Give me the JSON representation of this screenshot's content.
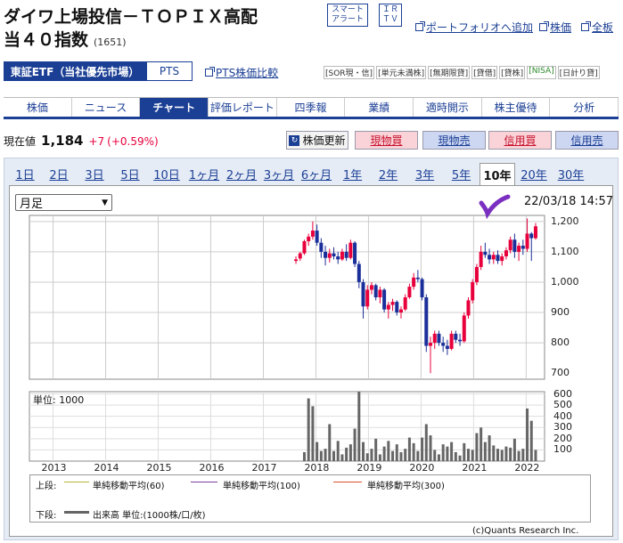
{
  "header": {
    "title_line1": "ダイワ上場投信－ＴＯＰＩＸ高配",
    "title_line2": "当４０指数",
    "code": "(1651)",
    "smart_alert": [
      "スマート",
      "アラート"
    ],
    "ir_tv": [
      "ＩＲ",
      "ＴＶ"
    ],
    "links": {
      "portfolio": "ポートフォリオへ追加",
      "stock_price": "株価",
      "full_view": "全板"
    }
  },
  "market_tabs": {
    "tse": "東証ETF（当社優先市場）",
    "pts": "PTS",
    "pts_compare": "PTS株価比較"
  },
  "badges": [
    "[SOR現・信]",
    "[単元未満株]",
    "[無期限貸]",
    "[貸借]",
    "[貸株]",
    "[NISA]",
    "[日計り貸]"
  ],
  "nav": [
    "株価",
    "ニュース",
    "チャート",
    "評価レポート",
    "四季報",
    "業績",
    "適時開示",
    "株主優待",
    "分析"
  ],
  "price": {
    "label": "現在値",
    "value": "1,184",
    "change": "+7",
    "change_pct": "(+0.59%)"
  },
  "actions": {
    "refresh": "株価更新",
    "cash_buy": "現物買",
    "cash_sell": "現物売",
    "margin_buy": "信用買",
    "margin_sell": "信用売"
  },
  "period_tabs": [
    "1日",
    "2日",
    "3日",
    "5日",
    "10日",
    "1ヶ月",
    "2ヶ月",
    "3ヶ月",
    "6ヶ月",
    "1年",
    "2年",
    "3年",
    "5年",
    "10年",
    "20年",
    "30年"
  ],
  "selected_period": "10年",
  "chart_select": "月足",
  "timestamp": "22/03/18 14:57",
  "chart_data": {
    "type": "candlestick",
    "x_labels": [
      "2013",
      "2014",
      "2015",
      "2016",
      "2017",
      "2018",
      "2019",
      "2020",
      "2021",
      "2022"
    ],
    "price_axis": {
      "ticks": [
        "1,200",
        "1,100",
        "1,000",
        "900",
        "800",
        "700"
      ],
      "range": [
        680,
        1220
      ]
    },
    "volume_axis": {
      "unit_label": "単位: 1000",
      "ticks": [
        "600",
        "500",
        "400",
        "300",
        "200",
        "100"
      ],
      "range": [
        0,
        620
      ]
    },
    "candles": [
      {
        "t": 2017.62,
        "o": 1070,
        "h": 1085,
        "l": 1060,
        "c": 1075
      },
      {
        "t": 2017.7,
        "o": 1078,
        "h": 1100,
        "l": 1070,
        "c": 1095
      },
      {
        "t": 2017.78,
        "o": 1095,
        "h": 1140,
        "l": 1090,
        "c": 1135
      },
      {
        "t": 2017.86,
        "o": 1135,
        "h": 1160,
        "l": 1120,
        "c": 1150
      },
      {
        "t": 2017.94,
        "o": 1150,
        "h": 1200,
        "l": 1140,
        "c": 1170
      },
      {
        "t": 2018.02,
        "o": 1170,
        "h": 1190,
        "l": 1120,
        "c": 1130
      },
      {
        "t": 2018.1,
        "o": 1130,
        "h": 1145,
        "l": 1080,
        "c": 1100
      },
      {
        "t": 2018.18,
        "o": 1100,
        "h": 1120,
        "l": 1055,
        "c": 1080
      },
      {
        "t": 2018.26,
        "o": 1080,
        "h": 1110,
        "l": 1065,
        "c": 1095
      },
      {
        "t": 2018.34,
        "o": 1095,
        "h": 1115,
        "l": 1075,
        "c": 1085
      },
      {
        "t": 2018.42,
        "o": 1085,
        "h": 1100,
        "l": 1060,
        "c": 1075
      },
      {
        "t": 2018.5,
        "o": 1075,
        "h": 1110,
        "l": 1070,
        "c": 1100
      },
      {
        "t": 2018.58,
        "o": 1100,
        "h": 1125,
        "l": 1070,
        "c": 1080
      },
      {
        "t": 2018.66,
        "o": 1080,
        "h": 1140,
        "l": 1075,
        "c": 1130
      },
      {
        "t": 2018.74,
        "o": 1130,
        "h": 1135,
        "l": 1050,
        "c": 1060
      },
      {
        "t": 2018.82,
        "o": 1060,
        "h": 1070,
        "l": 980,
        "c": 1000
      },
      {
        "t": 2018.9,
        "o": 1000,
        "h": 1010,
        "l": 880,
        "c": 920
      },
      {
        "t": 2018.98,
        "o": 920,
        "h": 990,
        "l": 910,
        "c": 975
      },
      {
        "t": 2019.06,
        "o": 975,
        "h": 1000,
        "l": 960,
        "c": 990
      },
      {
        "t": 2019.14,
        "o": 990,
        "h": 995,
        "l": 940,
        "c": 950
      },
      {
        "t": 2019.22,
        "o": 950,
        "h": 985,
        "l": 930,
        "c": 975
      },
      {
        "t": 2019.3,
        "o": 975,
        "h": 980,
        "l": 900,
        "c": 910
      },
      {
        "t": 2019.38,
        "o": 910,
        "h": 935,
        "l": 880,
        "c": 925
      },
      {
        "t": 2019.46,
        "o": 925,
        "h": 945,
        "l": 905,
        "c": 935
      },
      {
        "t": 2019.54,
        "o": 935,
        "h": 940,
        "l": 890,
        "c": 900
      },
      {
        "t": 2019.62,
        "o": 900,
        "h": 920,
        "l": 880,
        "c": 910
      },
      {
        "t": 2019.7,
        "o": 910,
        "h": 960,
        "l": 905,
        "c": 950
      },
      {
        "t": 2019.78,
        "o": 950,
        "h": 995,
        "l": 945,
        "c": 985
      },
      {
        "t": 2019.86,
        "o": 985,
        "h": 1030,
        "l": 975,
        "c": 1015
      },
      {
        "t": 2019.94,
        "o": 1015,
        "h": 1040,
        "l": 1000,
        "c": 1010
      },
      {
        "t": 2020.02,
        "o": 1010,
        "h": 1015,
        "l": 940,
        "c": 950
      },
      {
        "t": 2020.1,
        "o": 950,
        "h": 960,
        "l": 770,
        "c": 790
      },
      {
        "t": 2020.18,
        "o": 790,
        "h": 820,
        "l": 700,
        "c": 800
      },
      {
        "t": 2020.26,
        "o": 800,
        "h": 840,
        "l": 780,
        "c": 830
      },
      {
        "t": 2020.34,
        "o": 830,
        "h": 840,
        "l": 790,
        "c": 800
      },
      {
        "t": 2020.42,
        "o": 800,
        "h": 820,
        "l": 770,
        "c": 790
      },
      {
        "t": 2020.5,
        "o": 790,
        "h": 810,
        "l": 760,
        "c": 780
      },
      {
        "t": 2020.58,
        "o": 780,
        "h": 840,
        "l": 775,
        "c": 830
      },
      {
        "t": 2020.66,
        "o": 830,
        "h": 840,
        "l": 800,
        "c": 810
      },
      {
        "t": 2020.74,
        "o": 810,
        "h": 830,
        "l": 790,
        "c": 805
      },
      {
        "t": 2020.82,
        "o": 805,
        "h": 900,
        "l": 800,
        "c": 890
      },
      {
        "t": 2020.9,
        "o": 890,
        "h": 950,
        "l": 880,
        "c": 940
      },
      {
        "t": 2020.98,
        "o": 940,
        "h": 1010,
        "l": 930,
        "c": 1000
      },
      {
        "t": 2021.06,
        "o": 1000,
        "h": 1060,
        "l": 990,
        "c": 1050
      },
      {
        "t": 2021.14,
        "o": 1050,
        "h": 1120,
        "l": 1040,
        "c": 1100
      },
      {
        "t": 2021.22,
        "o": 1100,
        "h": 1130,
        "l": 1080,
        "c": 1090
      },
      {
        "t": 2021.3,
        "o": 1090,
        "h": 1110,
        "l": 1060,
        "c": 1075
      },
      {
        "t": 2021.38,
        "o": 1075,
        "h": 1100,
        "l": 1060,
        "c": 1090
      },
      {
        "t": 2021.46,
        "o": 1090,
        "h": 1105,
        "l": 1060,
        "c": 1070
      },
      {
        "t": 2021.54,
        "o": 1070,
        "h": 1095,
        "l": 1055,
        "c": 1085
      },
      {
        "t": 2021.62,
        "o": 1085,
        "h": 1115,
        "l": 1075,
        "c": 1105
      },
      {
        "t": 2021.7,
        "o": 1105,
        "h": 1150,
        "l": 1095,
        "c": 1140
      },
      {
        "t": 2021.78,
        "o": 1140,
        "h": 1160,
        "l": 1080,
        "c": 1100
      },
      {
        "t": 2021.86,
        "o": 1100,
        "h": 1130,
        "l": 1070,
        "c": 1120
      },
      {
        "t": 2021.94,
        "o": 1120,
        "h": 1140,
        "l": 1090,
        "c": 1110
      },
      {
        "t": 2022.02,
        "o": 1110,
        "h": 1210,
        "l": 1100,
        "c": 1160
      },
      {
        "t": 2022.1,
        "o": 1160,
        "h": 1165,
        "l": 1070,
        "c": 1145
      },
      {
        "t": 2022.18,
        "o": 1145,
        "h": 1195,
        "l": 1140,
        "c": 1184
      }
    ],
    "volumes": [
      {
        "t": 2017.78,
        "v": 80
      },
      {
        "t": 2017.86,
        "v": 560
      },
      {
        "t": 2017.94,
        "v": 490
      },
      {
        "t": 2018.02,
        "v": 170
      },
      {
        "t": 2018.1,
        "v": 90
      },
      {
        "t": 2018.18,
        "v": 110
      },
      {
        "t": 2018.26,
        "v": 330
      },
      {
        "t": 2018.34,
        "v": 90
      },
      {
        "t": 2018.42,
        "v": 180
      },
      {
        "t": 2018.5,
        "v": 60
      },
      {
        "t": 2018.58,
        "v": 120
      },
      {
        "t": 2018.66,
        "v": 150
      },
      {
        "t": 2018.74,
        "v": 290
      },
      {
        "t": 2018.82,
        "v": 620
      },
      {
        "t": 2018.9,
        "v": 170
      },
      {
        "t": 2018.98,
        "v": 70
      },
      {
        "t": 2019.06,
        "v": 110
      },
      {
        "t": 2019.14,
        "v": 200
      },
      {
        "t": 2019.22,
        "v": 60
      },
      {
        "t": 2019.3,
        "v": 130
      },
      {
        "t": 2019.38,
        "v": 180
      },
      {
        "t": 2019.46,
        "v": 90
      },
      {
        "t": 2019.54,
        "v": 150
      },
      {
        "t": 2019.62,
        "v": 80
      },
      {
        "t": 2019.7,
        "v": 110
      },
      {
        "t": 2019.78,
        "v": 210
      },
      {
        "t": 2019.86,
        "v": 160
      },
      {
        "t": 2019.94,
        "v": 90
      },
      {
        "t": 2020.02,
        "v": 210
      },
      {
        "t": 2020.1,
        "v": 330
      },
      {
        "t": 2020.18,
        "v": 230
      },
      {
        "t": 2020.26,
        "v": 100
      },
      {
        "t": 2020.34,
        "v": 60
      },
      {
        "t": 2020.42,
        "v": 150
      },
      {
        "t": 2020.5,
        "v": 130
      },
      {
        "t": 2020.58,
        "v": 170
      },
      {
        "t": 2020.66,
        "v": 80
      },
      {
        "t": 2020.74,
        "v": 50
      },
      {
        "t": 2020.82,
        "v": 160
      },
      {
        "t": 2020.9,
        "v": 110
      },
      {
        "t": 2020.98,
        "v": 100
      },
      {
        "t": 2021.06,
        "v": 250
      },
      {
        "t": 2021.14,
        "v": 300
      },
      {
        "t": 2021.22,
        "v": 170
      },
      {
        "t": 2021.3,
        "v": 230
      },
      {
        "t": 2021.38,
        "v": 140
      },
      {
        "t": 2021.46,
        "v": 110
      },
      {
        "t": 2021.54,
        "v": 100
      },
      {
        "t": 2021.62,
        "v": 130
      },
      {
        "t": 2021.7,
        "v": 120
      },
      {
        "t": 2021.78,
        "v": 200
      },
      {
        "t": 2021.86,
        "v": 90
      },
      {
        "t": 2021.94,
        "v": 110
      },
      {
        "t": 2022.02,
        "v": 470
      },
      {
        "t": 2022.1,
        "v": 360
      },
      {
        "t": 2022.18,
        "v": 100
      }
    ]
  },
  "legend": {
    "upper_label": "上段:",
    "ma60": "単純移動平均(60)",
    "ma100": "単純移動平均(100)",
    "ma300": "単純移動平均(300)",
    "lower_label": "下段:",
    "volume": "出来高 単位:(1000株/口/枚)",
    "colors": {
      "ma60": "#b5b53a",
      "ma100": "#7a3fa0",
      "ma300": "#d9502a",
      "up": "#e8003c",
      "down": "#1a2f9a"
    }
  },
  "copyright": "(c)Quants Research Inc."
}
